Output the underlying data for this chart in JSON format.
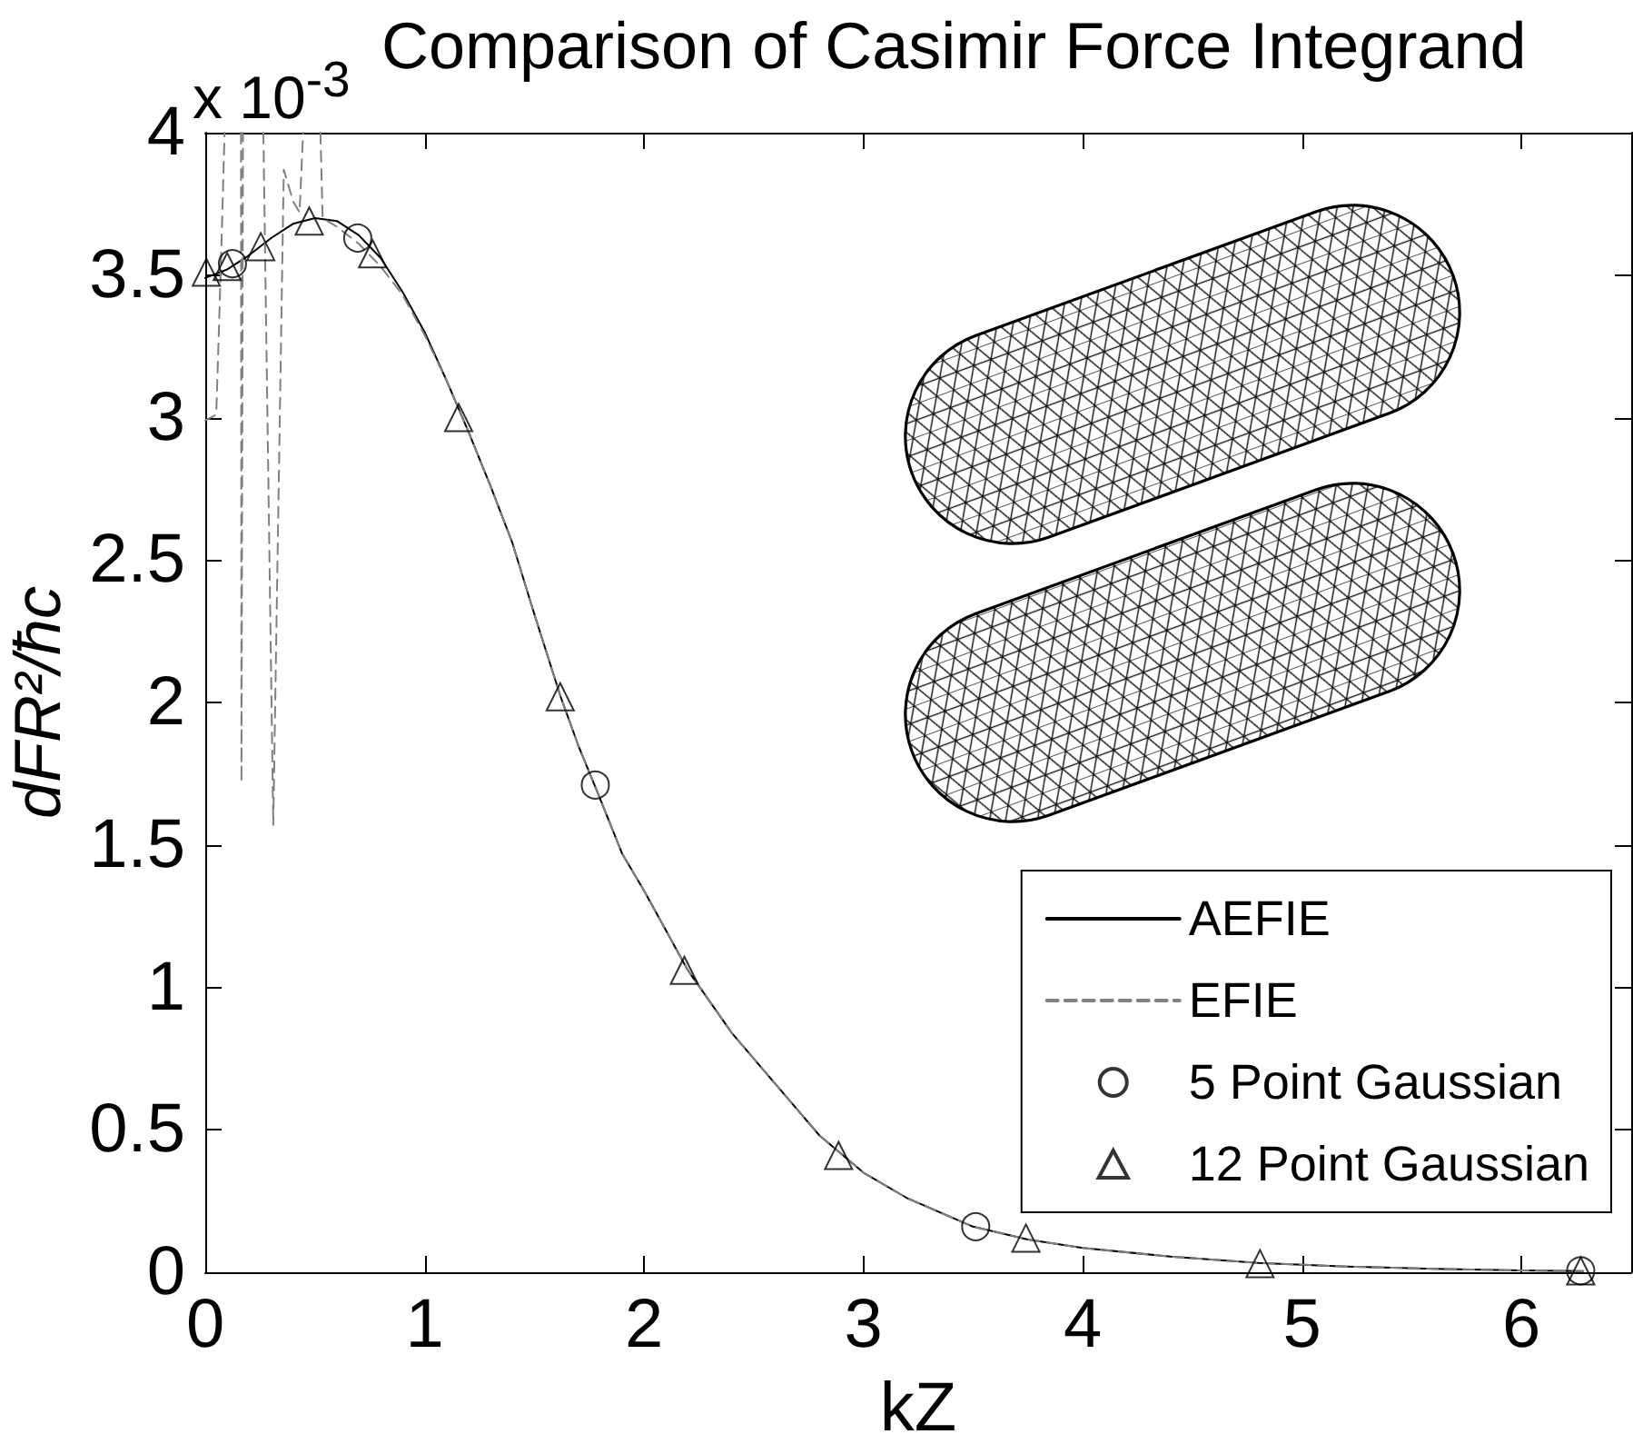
{
  "chart_data": {
    "type": "line",
    "title": "Comparison of Casimir Force Integrand",
    "xlabel": "kZ",
    "ylabel": "dFR²/ħc",
    "annotations": [
      "x 10$^{-3}$"
    ],
    "xlim": [
      0,
      6.5
    ],
    "ylim": [
      0,
      4
    ],
    "xticks": [
      0,
      1,
      2,
      3,
      4,
      5,
      6
    ],
    "yticks": [
      0,
      0.5,
      1,
      1.5,
      2,
      2.5,
      3,
      3.5,
      4
    ],
    "legend": "bottom right",
    "series": [
      {
        "name": "AEFIE",
        "type": "line",
        "color": "#000000",
        "line_style": "solid",
        "x": [
          0,
          0.1,
          0.2,
          0.3,
          0.4,
          0.5,
          0.6,
          0.7,
          0.8,
          0.9,
          1.0,
          1.1,
          1.2,
          1.3,
          1.4,
          1.5,
          1.62,
          1.7,
          1.78,
          1.9,
          2.0,
          2.2,
          2.4,
          2.6,
          2.8,
          3.0,
          3.2,
          3.5,
          3.75,
          4.0,
          4.4,
          4.8,
          5.2,
          5.6,
          6.0,
          6.28
        ],
        "values": [
          3.49,
          3.52,
          3.57,
          3.63,
          3.68,
          3.7,
          3.69,
          3.64,
          3.56,
          3.44,
          3.3,
          3.13,
          2.95,
          2.76,
          2.56,
          2.31,
          2.02,
          1.85,
          1.7,
          1.47,
          1.34,
          1.06,
          0.84,
          0.66,
          0.48,
          0.35,
          0.26,
          0.16,
          0.115,
          0.085,
          0.055,
          0.033,
          0.02,
          0.012,
          0.006,
          0.004
        ]
      },
      {
        "name": "EFIE",
        "type": "line",
        "color": "#808080",
        "line_style": "dashed",
        "x": [
          0,
          0.05,
          0.07,
          0.088,
          0.12,
          0.163,
          0.165,
          0.172,
          0.22,
          0.265,
          0.31,
          0.358,
          0.4,
          0.43,
          0.446,
          0.49,
          0.525,
          0.535,
          0.6,
          0.7,
          0.8,
          0.9,
          1.0,
          1.1,
          1.2,
          1.3,
          1.4,
          1.5,
          1.62,
          1.7,
          1.78,
          1.9,
          2.0,
          2.2,
          2.4,
          2.6,
          2.8,
          3.0,
          3.2,
          3.5,
          3.75,
          4.0,
          4.4,
          4.8,
          5.2,
          5.6,
          6.0,
          6.28
        ],
        "values": [
          2.99,
          3.01,
          3.5,
          4,
          null,
          4,
          1.72,
          4,
          null,
          4,
          1.57,
          3.87,
          3.76,
          3.72,
          4,
          null,
          4,
          3.7,
          3.67,
          3.61,
          3.53,
          3.43,
          3.29,
          3.13,
          2.95,
          2.76,
          2.56,
          2.31,
          2.02,
          1.85,
          1.7,
          1.47,
          1.34,
          1.06,
          0.84,
          0.66,
          0.48,
          0.35,
          0.26,
          0.16,
          0.115,
          0.085,
          0.055,
          0.033,
          0.02,
          0.012,
          0.006,
          0.004
        ]
      },
      {
        "name": "5 Point Gaussian",
        "type": "scatter",
        "color": "#000000",
        "marker": "circle",
        "x": [
          0.124,
          0.695,
          1.778,
          3.512,
          6.27
        ],
        "values": [
          3.54,
          3.63,
          1.71,
          0.16,
          0.005
        ]
      },
      {
        "name": "12 Point Gaussian",
        "type": "scatter",
        "color": "#000000",
        "marker": "triangle",
        "x": [
          0.005,
          0.1,
          0.253,
          0.474,
          0.763,
          1.155,
          1.618,
          2.184,
          2.887,
          3.741,
          4.808,
          6.27
        ],
        "values": [
          3.51,
          3.53,
          3.6,
          3.69,
          3.575,
          3.0,
          2.02,
          1.06,
          0.41,
          0.12,
          0.03,
          0.005
        ]
      }
    ]
  }
}
